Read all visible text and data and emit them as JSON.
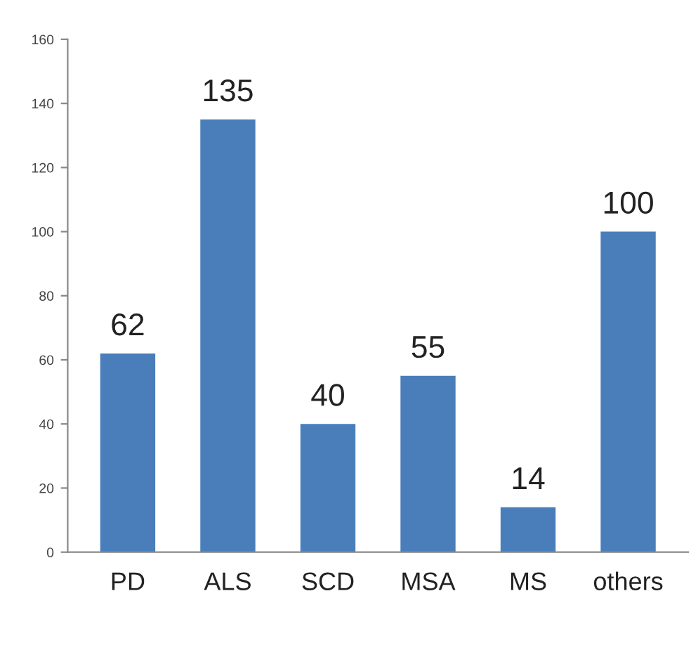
{
  "chart_data": {
    "type": "bar",
    "categories": [
      "PD",
      "ALS",
      "SCD",
      "MSA",
      "MS",
      "others"
    ],
    "values": [
      62,
      135,
      40,
      55,
      14,
      100
    ],
    "color": "#4a7ebb",
    "ylim": [
      0,
      160
    ],
    "yticks": [
      0,
      20,
      40,
      60,
      80,
      100,
      120,
      140,
      160
    ],
    "data_labels": true,
    "grid": false,
    "legend": false
  }
}
